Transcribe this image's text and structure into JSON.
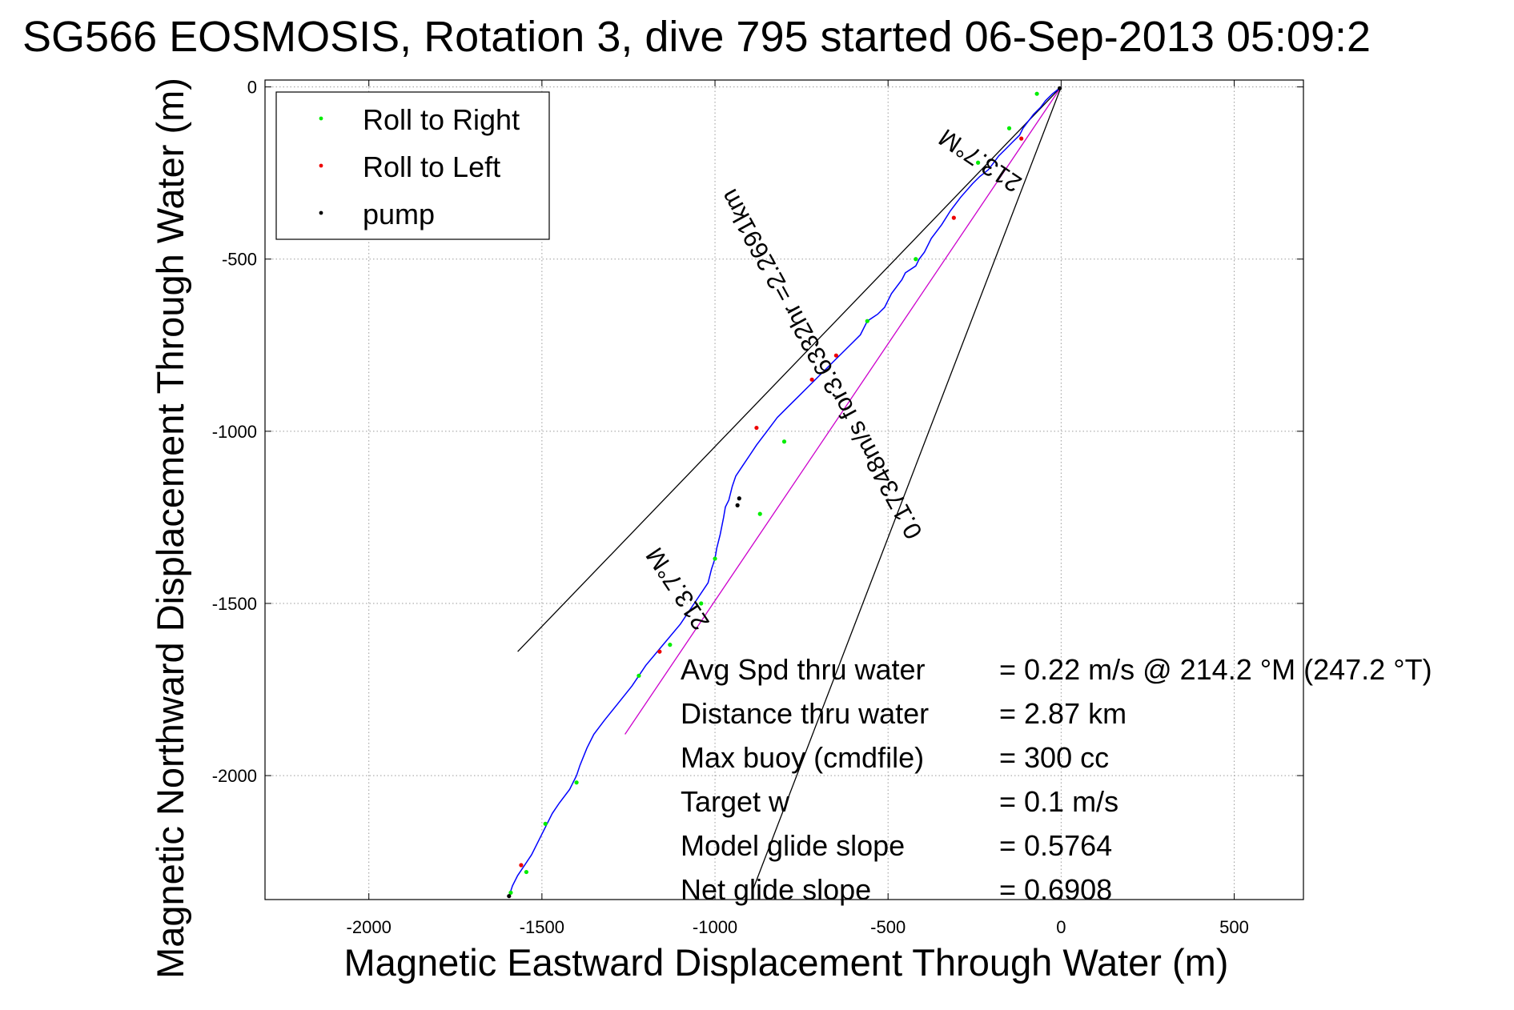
{
  "chart_data": {
    "type": "line",
    "title": "SG566 EOSMOSIS, Rotation 3, dive 795 started 06-Sep-2013 05:09:2",
    "xlabel": "Magnetic Eastward Displacement Through Water (m)",
    "ylabel": "Magnetic Northward Displacement Through Water (m)",
    "xlim": [
      -2300,
      700
    ],
    "ylim": [
      -2360,
      20
    ],
    "xticks": [
      -2000,
      -1500,
      -1000,
      -500,
      0,
      500
    ],
    "yticks": [
      0,
      -500,
      -1000,
      -1500,
      -2000
    ],
    "grid": true,
    "legend_position": "top-left",
    "legend": [
      {
        "label": "Roll to Right",
        "color": "#00ee00"
      },
      {
        "label": "Roll to Left",
        "color": "#ee0000"
      },
      {
        "label": "pump",
        "color": "#000000"
      }
    ],
    "series": [
      {
        "color": "#0000ff",
        "x": [
          0,
          -25,
          -45,
          -60,
          -80,
          -95,
          -110,
          -120,
          -140,
          -160,
          -180,
          -195,
          -210,
          -235,
          -255,
          -290,
          -320,
          -345,
          -375,
          -395,
          -410,
          -420,
          -450,
          -460,
          -490,
          -510,
          -530,
          -560,
          -580,
          -600,
          -620,
          -650,
          -680,
          -700,
          -730,
          -760,
          -790,
          -820,
          -850,
          -880,
          -900,
          -920,
          -940,
          -950,
          -960,
          -970,
          -975,
          -985,
          -995,
          -1000,
          -1010,
          -1020,
          -1060,
          -1100,
          -1150,
          -1200,
          -1240,
          -1280,
          -1320,
          -1350,
          -1370,
          -1390,
          -1400,
          -1410,
          -1420,
          -1450,
          -1470,
          -1490,
          -1510,
          -1530,
          -1550,
          -1570,
          -1585,
          -1595
        ],
        "y": [
          0,
          -20,
          -40,
          -60,
          -80,
          -100,
          -120,
          -140,
          -160,
          -180,
          -200,
          -220,
          -240,
          -260,
          -280,
          -320,
          -360,
          -400,
          -440,
          -480,
          -500,
          -520,
          -540,
          -560,
          -600,
          -640,
          -660,
          -680,
          -720,
          -740,
          -760,
          -790,
          -820,
          -840,
          -870,
          -900,
          -930,
          -960,
          -1000,
          -1040,
          -1070,
          -1100,
          -1130,
          -1160,
          -1200,
          -1220,
          -1250,
          -1300,
          -1340,
          -1370,
          -1400,
          -1440,
          -1500,
          -1560,
          -1620,
          -1680,
          -1740,
          -1790,
          -1840,
          -1880,
          -1920,
          -1970,
          -2000,
          -2020,
          -2040,
          -2080,
          -2110,
          -2150,
          -2190,
          -2230,
          -2260,
          -2290,
          -2320,
          -2350
        ]
      }
    ],
    "markers": {
      "roll_right": {
        "x": [
          -70,
          -150,
          -240,
          -420,
          -560,
          -800,
          -870,
          -1000,
          -1040,
          -1130,
          -1220,
          -1400,
          -1490,
          -1545,
          -1590
        ],
        "y": [
          -20,
          -120,
          -220,
          -500,
          -680,
          -1030,
          -1240,
          -1370,
          -1500,
          -1620,
          -1710,
          -2020,
          -2140,
          -2280,
          -2340
        ]
      },
      "roll_left": {
        "x": [
          -115,
          -310,
          -650,
          -720,
          -880,
          -1160,
          -1560
        ],
        "y": [
          -150,
          -380,
          -780,
          -850,
          -990,
          -1640,
          -2260
        ]
      },
      "pump": {
        "x": [
          -4,
          -930,
          -935,
          -1595
        ],
        "y": [
          -4,
          -1195,
          -1215,
          -2350
        ]
      }
    },
    "reference_lines": [
      {
        "label": "",
        "color": "#000000",
        "x": [
          0,
          -1570
        ],
        "y": [
          0,
          -1640
        ]
      },
      {
        "label": "",
        "color": "#000000",
        "x": [
          0,
          -890
        ],
        "y": [
          0,
          -2330
        ]
      },
      {
        "label": "",
        "color": "#cc00cc",
        "x": [
          0,
          -1260
        ],
        "y": [
          0,
          -1880
        ]
      }
    ],
    "line_labels": [
      {
        "text": "213.7°M",
        "angle_deg": 33.7
      },
      {
        "text": "0.17348m/s for3.6332hr =2.2691km",
        "angle_deg": 61.4
      },
      {
        "text": "213.7°M",
        "angle_deg": 56.3
      }
    ],
    "annotations": [
      {
        "label": "Avg Spd thru water",
        "value": "=  0.22 m/s @ 214.2 °M (247.2 °T)"
      },
      {
        "label": "Distance thru water",
        "value": "=  2.87 km"
      },
      {
        "label": "Max buoy (cmdfile)",
        "value": "= 300 cc"
      },
      {
        "label": "Target w",
        "value": "= 0.1 m/s"
      },
      {
        "label": "Model glide slope",
        "value": "= 0.5764"
      },
      {
        "label": "Net glide slope",
        "value": "= 0.6908"
      }
    ]
  }
}
